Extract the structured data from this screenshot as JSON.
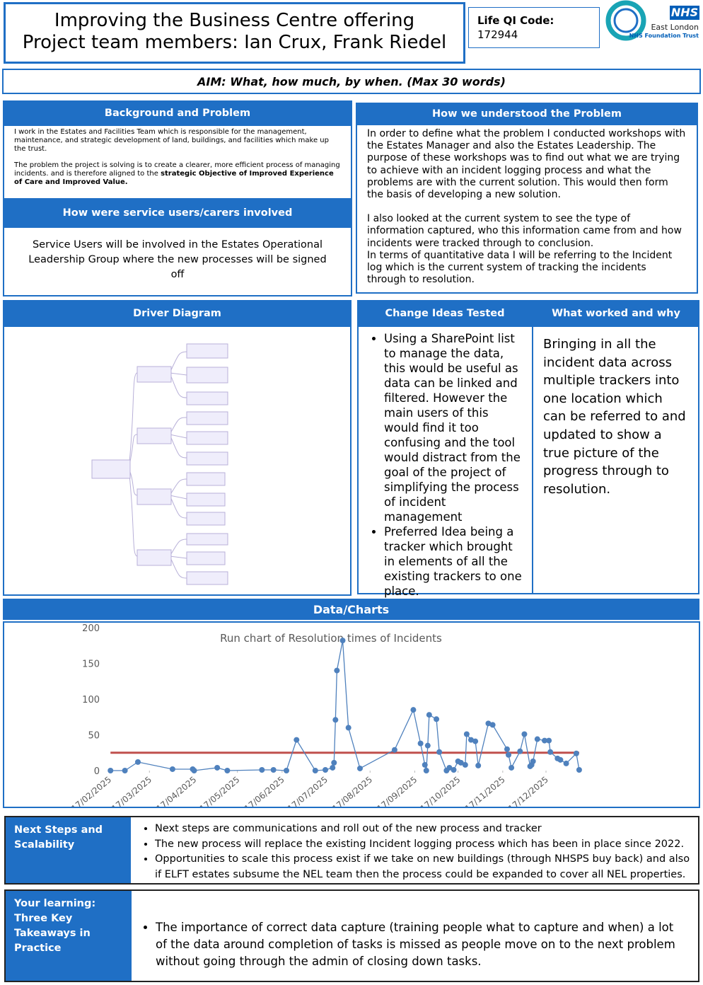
{
  "header": {
    "title": "Improving the Business Centre offering",
    "team": "Project team members: Ian Crux, Frank Riedel",
    "lifeqi_label": "Life QI Code:",
    "lifeqi_code": "172944",
    "logo": {
      "nhs": "NHS",
      "org": "East London",
      "trust": "NHS Foundation Trust"
    }
  },
  "aim": "AIM: What, how much, by when. (Max 30 words)",
  "background": {
    "heading": "Background and Problem",
    "paragraph1": "I work in the Estates and Facilities Team which is responsible for the management, maintenance,  and strategic development of land, buildings, and facilities which make up the trust.",
    "paragraph2": [
      "The problem the project is solving is to create a clearer, more efficient process of managing incidents. and is therefore aligned to the ",
      "strategic Objective of Improved Experience of Care and Improved Value."
    ]
  },
  "service_users": {
    "heading": "How were service users/carers involved",
    "text": "Service Users will be involved in the Estates Operational Leadership Group where the new processes will be signed off"
  },
  "understood": {
    "heading": "How we understood the Problem",
    "paragraphs": [
      "In order to define what the problem I conducted workshops with the Estates Manager and also the Estates Leadership. The purpose of these workshops was to find out what we are trying to achieve with an incident logging process and what the problems are with the current solution.  This would then form the basis of developing a new solution.",
      "I also looked at the current system to see the type of information captured, who this information came from and how incidents were tracked through to conclusion.",
      "In terms of quantitative data I will be referring to the Incident log which is the current system of tracking the incidents through to resolution."
    ]
  },
  "driver_diagram": {
    "heading": "Driver Diagram"
  },
  "change_ideas": {
    "heading": "Change Ideas Tested",
    "bullets": [
      "Using a SharePoint list to manage the data, this would be useful as data can be linked and filtered. However the main users of this would find it too confusing and the tool would distract from the goal of the project of simplifying the process of incident management",
      "Preferred Idea being a tracker which brought in elements of all the existing trackers to one place."
    ]
  },
  "what_worked": {
    "heading": "What worked and why",
    "text": "Bringing in all the incident data across multiple trackers into one location which can be referred to and updated to show a true picture of the progress through to resolution."
  },
  "data_heading": "Data/Charts",
  "chart_data": {
    "type": "line",
    "title": "Run chart of Resolution times of Incidents",
    "color": "#4f81bd",
    "x": [
      "2025-02-18",
      "2025-02-28",
      "2025-03-09",
      "2025-04-02",
      "2025-04-16",
      "2025-04-17",
      "2025-05-03",
      "2025-05-10",
      "2025-06-03",
      "2025-06-11",
      "2025-06-20",
      "2025-06-27",
      "2025-07-10",
      "2025-07-17",
      "2025-07-22",
      "2025-07-23",
      "2025-07-24",
      "2025-07-25",
      "2025-07-29",
      "2025-08-02",
      "2025-08-10",
      "2025-09-03",
      "2025-09-16",
      "2025-09-21",
      "2025-09-24",
      "2025-09-25",
      "2025-09-26",
      "2025-09-27",
      "2025-10-02",
      "2025-10-04",
      "2025-10-09",
      "2025-10-11",
      "2025-10-14",
      "2025-10-17",
      "2025-10-19",
      "2025-10-22",
      "2025-10-23",
      "2025-10-26",
      "2025-10-29",
      "2025-10-31",
      "2025-11-07",
      "2025-11-10",
      "2025-11-20",
      "2025-11-21",
      "2025-11-23",
      "2025-11-29",
      "2025-12-02",
      "2025-12-06",
      "2025-12-07",
      "2025-12-08",
      "2025-12-11",
      "2025-12-16",
      "2025-12-19",
      "2025-12-20",
      "2025-12-25",
      "2025-12-27",
      "2025-12-31",
      "2026-01-07",
      "2026-01-09"
    ],
    "values": [
      0,
      0,
      12,
      2,
      2,
      0,
      4,
      0,
      1,
      1,
      0,
      43,
      0,
      1,
      4,
      11,
      71,
      140,
      182,
      60,
      3,
      29,
      85,
      38,
      8,
      0,
      35,
      78,
      72,
      26,
      0,
      4,
      1,
      13,
      11,
      8,
      51,
      43,
      41,
      7,
      66,
      64,
      30,
      22,
      4,
      27,
      51,
      6,
      8,
      13,
      44,
      42,
      42,
      26,
      17,
      15,
      10,
      24,
      1
    ],
    "reference_line": {
      "value": 25,
      "color": "#c0504d"
    },
    "xlim": [
      "2025-02-12",
      "2026-01-11"
    ],
    "xticks": [
      {
        "value": "2025-02-17",
        "label": "17/02/2025"
      },
      {
        "value": "2025-03-17",
        "label": "17/03/2025"
      },
      {
        "value": "2025-04-17",
        "label": "17/04/2025"
      },
      {
        "value": "2025-05-17",
        "label": "17/05/2025"
      },
      {
        "value": "2025-06-17",
        "label": "17/06/2025"
      },
      {
        "value": "2025-07-17",
        "label": "17/07/2025"
      },
      {
        "value": "2025-08-17",
        "label": "17/08/2025"
      },
      {
        "value": "2025-09-17",
        "label": "17/09/2025"
      },
      {
        "value": "2025-10-17",
        "label": "17/10/2025"
      },
      {
        "value": "2025-11-17",
        "label": "17/11/2025"
      },
      {
        "value": "2025-12-17",
        "label": "17/12/2025"
      }
    ],
    "ylim": [
      0,
      200
    ],
    "yticks": [
      0,
      50,
      100,
      150,
      200
    ],
    "grid": false
  },
  "next_steps": {
    "heading": "Next Steps and Scalability",
    "bullets": [
      "Next steps are communications and roll out of the new process and tracker",
      "The new process will replace the existing Incident logging process which has been in place since 2022.",
      "Opportunities to scale this process exist if we take on new buildings (through NHSPS buy back) and also if ELFT estates subsume the NEL team then the process could be expanded to cover all NEL properties."
    ]
  },
  "learning": {
    "heading": "Your learning: Three Key Takeaways in Practice",
    "bullets": [
      "The importance of correct data capture (training people what to capture and when) a lot of the data around completion of tasks is missed as people move on to the next problem without going through the admin of closing down tasks."
    ]
  }
}
